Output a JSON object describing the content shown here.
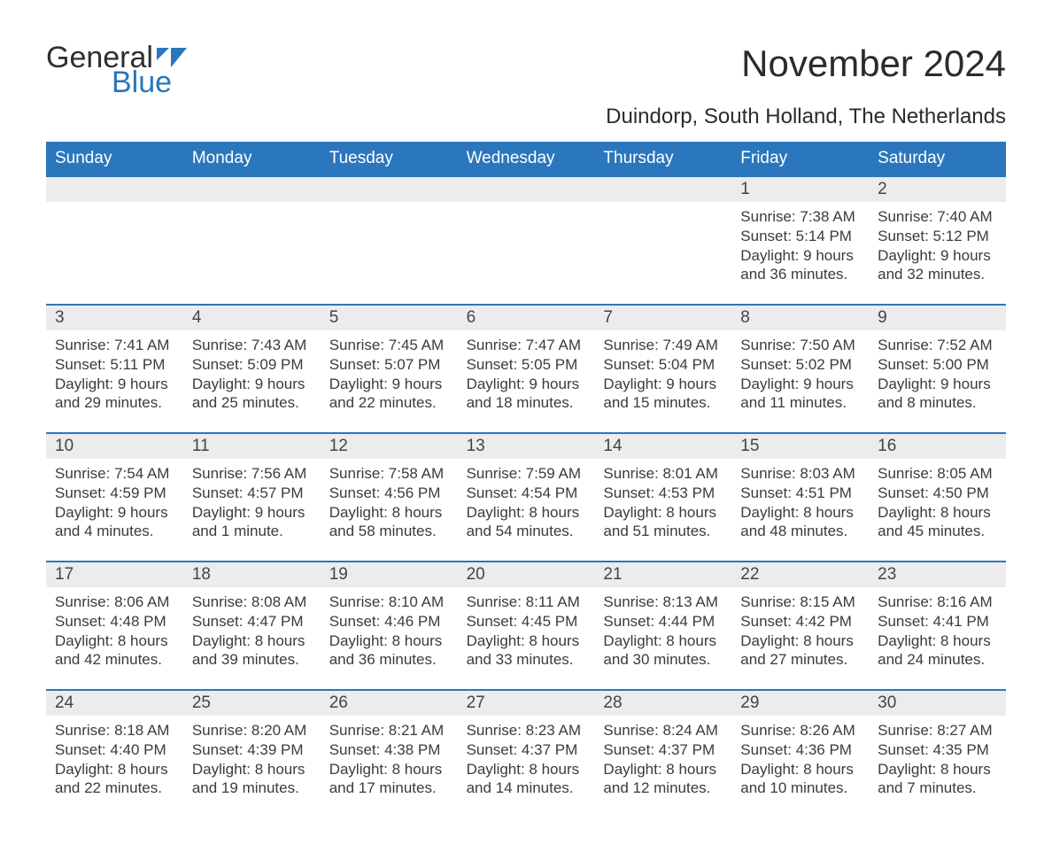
{
  "brand": {
    "general": "General",
    "blue": "Blue"
  },
  "title": "November 2024",
  "location": "Duindorp, South Holland, The Netherlands",
  "colors": {
    "headerBg": "#2a77bd",
    "headerText": "#ffffff",
    "bandBg": "#ececec",
    "bandBorder": "#2a77bd",
    "bodyText": "#3b3b3b",
    "titleText": "#2b2b2b",
    "logoBlue": "#2a77bd",
    "logoDark": "#2f2f2f",
    "pageBg": "#ffffff"
  },
  "typography": {
    "fontFamily": "Arial, Helvetica, sans-serif",
    "titleSize": 42,
    "locationSize": 24,
    "headerSize": 19,
    "dayNumSize": 19,
    "bodySize": 17
  },
  "dayHeaders": [
    "Sunday",
    "Monday",
    "Tuesday",
    "Wednesday",
    "Thursday",
    "Friday",
    "Saturday"
  ],
  "weeks": [
    [
      {
        "day": "",
        "lines": [
          "",
          "",
          "",
          ""
        ]
      },
      {
        "day": "",
        "lines": [
          "",
          "",
          "",
          ""
        ]
      },
      {
        "day": "",
        "lines": [
          "",
          "",
          "",
          ""
        ]
      },
      {
        "day": "",
        "lines": [
          "",
          "",
          "",
          ""
        ]
      },
      {
        "day": "",
        "lines": [
          "",
          "",
          "",
          ""
        ]
      },
      {
        "day": "1",
        "lines": [
          "Sunrise: 7:38 AM",
          "Sunset: 5:14 PM",
          "Daylight: 9 hours",
          "and 36 minutes."
        ]
      },
      {
        "day": "2",
        "lines": [
          "Sunrise: 7:40 AM",
          "Sunset: 5:12 PM",
          "Daylight: 9 hours",
          "and 32 minutes."
        ]
      }
    ],
    [
      {
        "day": "3",
        "lines": [
          "Sunrise: 7:41 AM",
          "Sunset: 5:11 PM",
          "Daylight: 9 hours",
          "and 29 minutes."
        ]
      },
      {
        "day": "4",
        "lines": [
          "Sunrise: 7:43 AM",
          "Sunset: 5:09 PM",
          "Daylight: 9 hours",
          "and 25 minutes."
        ]
      },
      {
        "day": "5",
        "lines": [
          "Sunrise: 7:45 AM",
          "Sunset: 5:07 PM",
          "Daylight: 9 hours",
          "and 22 minutes."
        ]
      },
      {
        "day": "6",
        "lines": [
          "Sunrise: 7:47 AM",
          "Sunset: 5:05 PM",
          "Daylight: 9 hours",
          "and 18 minutes."
        ]
      },
      {
        "day": "7",
        "lines": [
          "Sunrise: 7:49 AM",
          "Sunset: 5:04 PM",
          "Daylight: 9 hours",
          "and 15 minutes."
        ]
      },
      {
        "day": "8",
        "lines": [
          "Sunrise: 7:50 AM",
          "Sunset: 5:02 PM",
          "Daylight: 9 hours",
          "and 11 minutes."
        ]
      },
      {
        "day": "9",
        "lines": [
          "Sunrise: 7:52 AM",
          "Sunset: 5:00 PM",
          "Daylight: 9 hours",
          "and 8 minutes."
        ]
      }
    ],
    [
      {
        "day": "10",
        "lines": [
          "Sunrise: 7:54 AM",
          "Sunset: 4:59 PM",
          "Daylight: 9 hours",
          "and 4 minutes."
        ]
      },
      {
        "day": "11",
        "lines": [
          "Sunrise: 7:56 AM",
          "Sunset: 4:57 PM",
          "Daylight: 9 hours",
          "and 1 minute."
        ]
      },
      {
        "day": "12",
        "lines": [
          "Sunrise: 7:58 AM",
          "Sunset: 4:56 PM",
          "Daylight: 8 hours",
          "and 58 minutes."
        ]
      },
      {
        "day": "13",
        "lines": [
          "Sunrise: 7:59 AM",
          "Sunset: 4:54 PM",
          "Daylight: 8 hours",
          "and 54 minutes."
        ]
      },
      {
        "day": "14",
        "lines": [
          "Sunrise: 8:01 AM",
          "Sunset: 4:53 PM",
          "Daylight: 8 hours",
          "and 51 minutes."
        ]
      },
      {
        "day": "15",
        "lines": [
          "Sunrise: 8:03 AM",
          "Sunset: 4:51 PM",
          "Daylight: 8 hours",
          "and 48 minutes."
        ]
      },
      {
        "day": "16",
        "lines": [
          "Sunrise: 8:05 AM",
          "Sunset: 4:50 PM",
          "Daylight: 8 hours",
          "and 45 minutes."
        ]
      }
    ],
    [
      {
        "day": "17",
        "lines": [
          "Sunrise: 8:06 AM",
          "Sunset: 4:48 PM",
          "Daylight: 8 hours",
          "and 42 minutes."
        ]
      },
      {
        "day": "18",
        "lines": [
          "Sunrise: 8:08 AM",
          "Sunset: 4:47 PM",
          "Daylight: 8 hours",
          "and 39 minutes."
        ]
      },
      {
        "day": "19",
        "lines": [
          "Sunrise: 8:10 AM",
          "Sunset: 4:46 PM",
          "Daylight: 8 hours",
          "and 36 minutes."
        ]
      },
      {
        "day": "20",
        "lines": [
          "Sunrise: 8:11 AM",
          "Sunset: 4:45 PM",
          "Daylight: 8 hours",
          "and 33 minutes."
        ]
      },
      {
        "day": "21",
        "lines": [
          "Sunrise: 8:13 AM",
          "Sunset: 4:44 PM",
          "Daylight: 8 hours",
          "and 30 minutes."
        ]
      },
      {
        "day": "22",
        "lines": [
          "Sunrise: 8:15 AM",
          "Sunset: 4:42 PM",
          "Daylight: 8 hours",
          "and 27 minutes."
        ]
      },
      {
        "day": "23",
        "lines": [
          "Sunrise: 8:16 AM",
          "Sunset: 4:41 PM",
          "Daylight: 8 hours",
          "and 24 minutes."
        ]
      }
    ],
    [
      {
        "day": "24",
        "lines": [
          "Sunrise: 8:18 AM",
          "Sunset: 4:40 PM",
          "Daylight: 8 hours",
          "and 22 minutes."
        ]
      },
      {
        "day": "25",
        "lines": [
          "Sunrise: 8:20 AM",
          "Sunset: 4:39 PM",
          "Daylight: 8 hours",
          "and 19 minutes."
        ]
      },
      {
        "day": "26",
        "lines": [
          "Sunrise: 8:21 AM",
          "Sunset: 4:38 PM",
          "Daylight: 8 hours",
          "and 17 minutes."
        ]
      },
      {
        "day": "27",
        "lines": [
          "Sunrise: 8:23 AM",
          "Sunset: 4:37 PM",
          "Daylight: 8 hours",
          "and 14 minutes."
        ]
      },
      {
        "day": "28",
        "lines": [
          "Sunrise: 8:24 AM",
          "Sunset: 4:37 PM",
          "Daylight: 8 hours",
          "and 12 minutes."
        ]
      },
      {
        "day": "29",
        "lines": [
          "Sunrise: 8:26 AM",
          "Sunset: 4:36 PM",
          "Daylight: 8 hours",
          "and 10 minutes."
        ]
      },
      {
        "day": "30",
        "lines": [
          "Sunrise: 8:27 AM",
          "Sunset: 4:35 PM",
          "Daylight: 8 hours",
          "and 7 minutes."
        ]
      }
    ]
  ]
}
